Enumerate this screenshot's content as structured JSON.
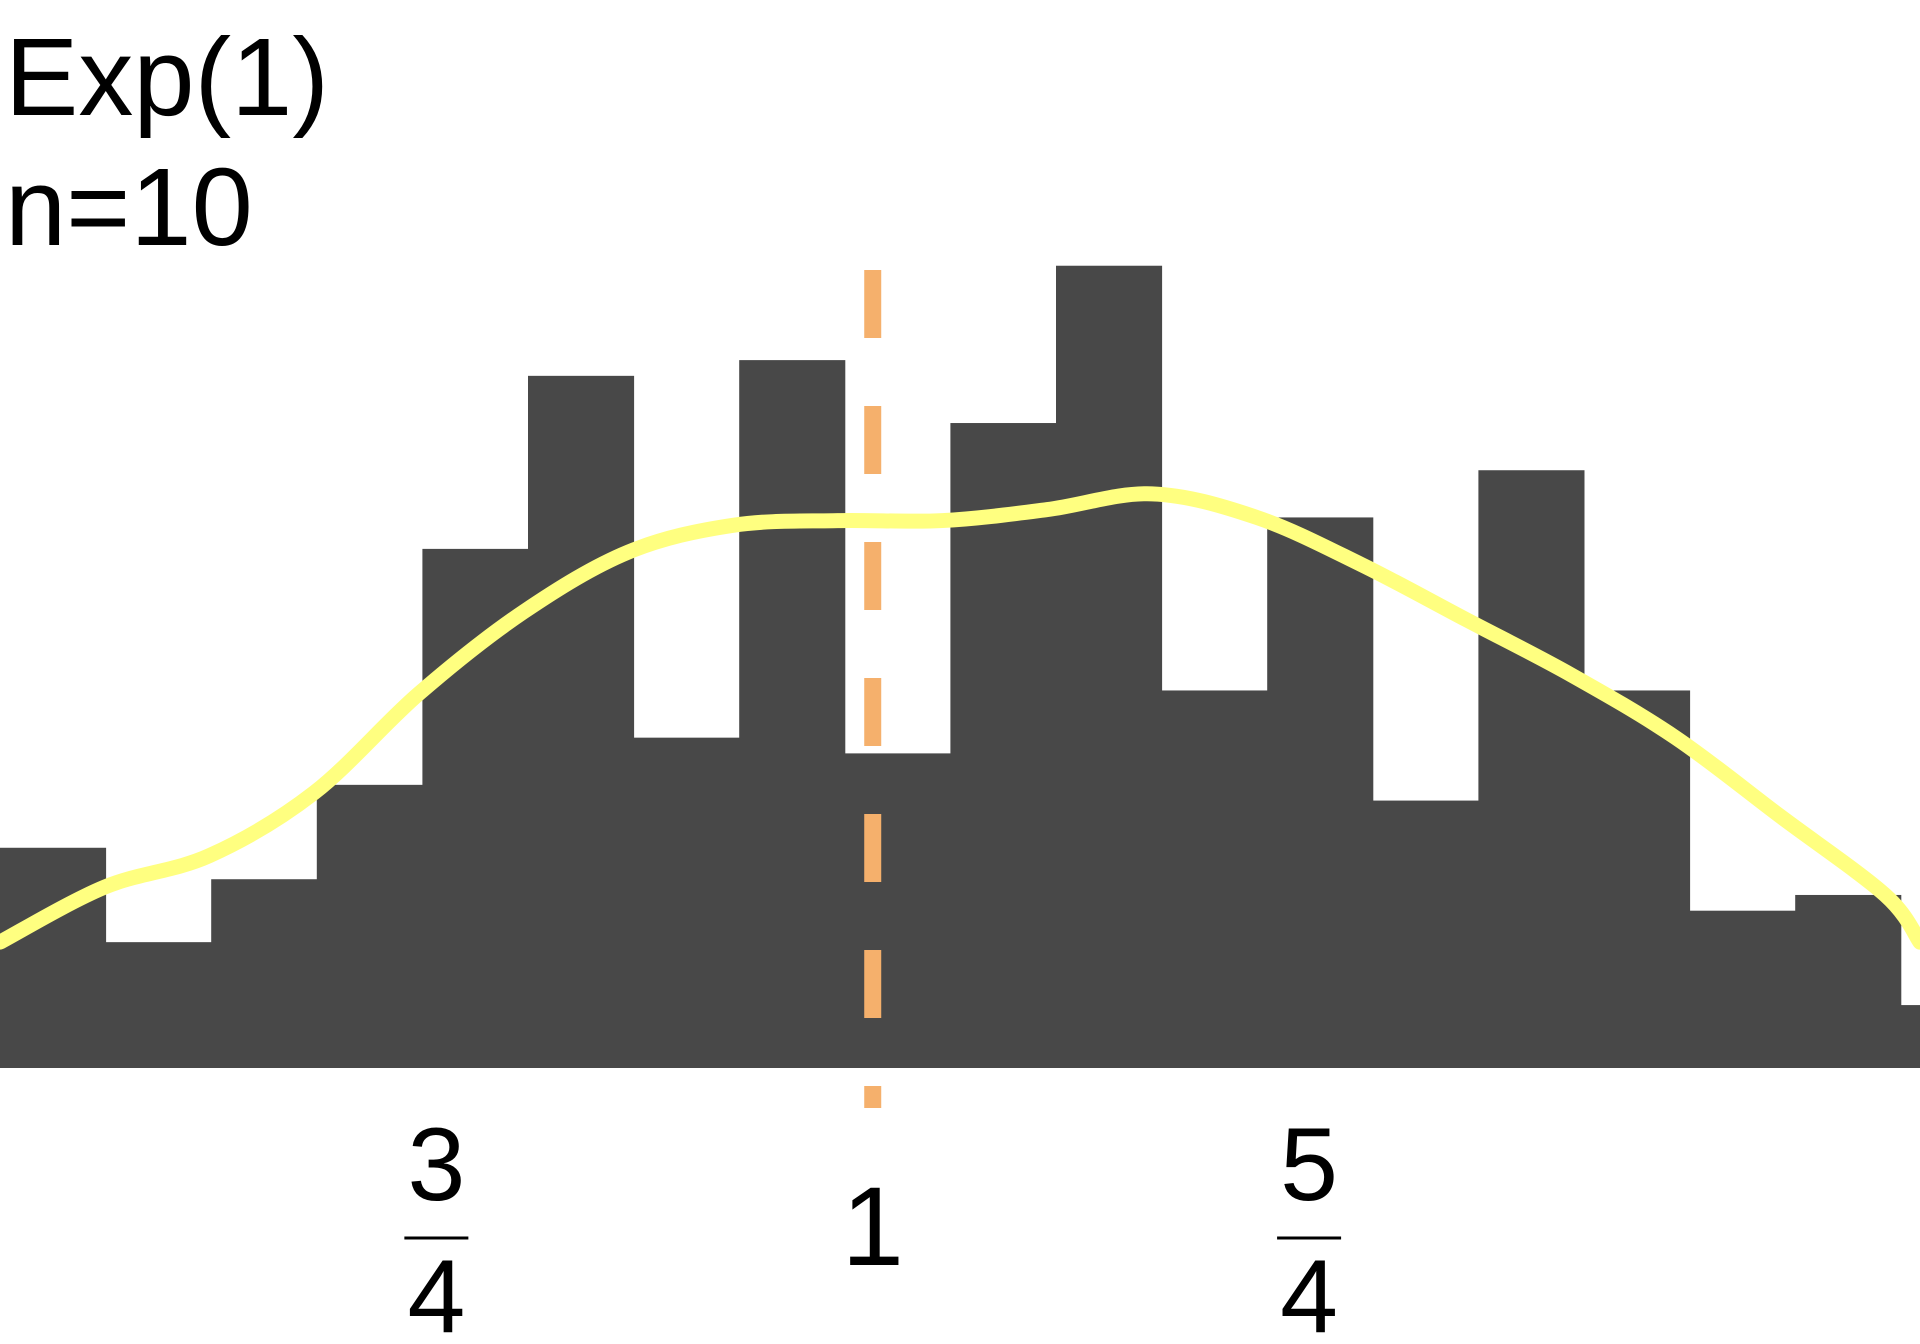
{
  "chart_data": {
    "type": "bar",
    "title": "Exp(1)",
    "subtitle": "n=10",
    "xlabel": "",
    "ylabel": "",
    "xlim": [
      0.5,
      1.6
    ],
    "ylim": [
      0,
      0.0052
    ],
    "grid": false,
    "bin_edges": [
      0.5,
      0.5605,
      0.621,
      0.6815,
      0.742,
      0.8025,
      0.863,
      0.9235,
      0.984,
      1.0445,
      1.105,
      1.1655,
      1.226,
      1.2865,
      1.347,
      1.4075,
      1.468,
      1.5285,
      1.589,
      1.6
    ],
    "bin_values": [
      0.0014,
      0.0008,
      0.0012,
      0.0018,
      0.0033,
      0.0044,
      0.0021,
      0.0045,
      0.002,
      0.0041,
      0.0051,
      0.0024,
      0.0035,
      0.0017,
      0.0038,
      0.0024,
      0.001,
      0.0011,
      0.0004
    ],
    "density_curve": {
      "x": [
        0.5,
        0.56,
        0.62,
        0.68,
        0.74,
        0.8,
        0.86,
        0.92,
        0.98,
        1.04,
        1.1,
        1.16,
        1.22,
        1.28,
        1.34,
        1.4,
        1.46,
        1.52,
        1.58,
        1.6
      ],
      "y": [
        0.0008,
        0.00115,
        0.00135,
        0.00175,
        0.00238,
        0.0029,
        0.00328,
        0.00345,
        0.00348,
        0.00348,
        0.00355,
        0.00365,
        0.0035,
        0.0032,
        0.00285,
        0.0025,
        0.0021,
        0.0016,
        0.0011,
        0.0008
      ],
      "color": "#ffff80"
    },
    "reference_line": {
      "x": 1.0,
      "color": "#f5b06c",
      "style": "dashed"
    },
    "bar_color": "#484848",
    "x_ticks": [
      {
        "value": 0.75,
        "numerator": "3",
        "denominator": "4"
      },
      {
        "value": 1.0,
        "label": "1"
      },
      {
        "value": 1.25,
        "numerator": "5",
        "denominator": "4"
      }
    ]
  }
}
